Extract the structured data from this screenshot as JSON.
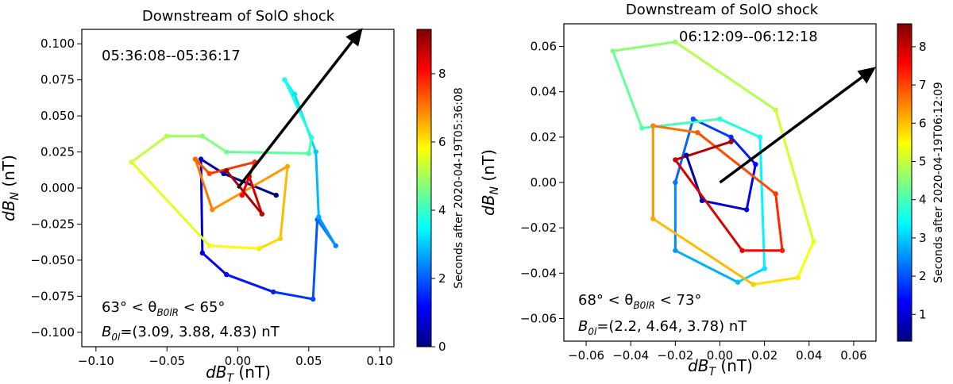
{
  "chart_data": [
    {
      "type": "line",
      "title": "Downstream of SolO shock",
      "xlabel_base": "dB",
      "xlabel_sub": "T",
      "xlabel_unit": " (nT)",
      "ylabel_base": "dB",
      "ylabel_sub": "N",
      "ylabel_unit": " (nT)",
      "xlim": [
        -0.11,
        0.11
      ],
      "ylim": [
        -0.11,
        0.11
      ],
      "xticks": [
        -0.1,
        -0.05,
        0.0,
        0.05,
        0.1
      ],
      "xtick_labels": [
        "−0.10",
        "−0.05",
        "0.00",
        "0.05",
        "0.10"
      ],
      "yticks": [
        -0.1,
        -0.075,
        -0.05,
        -0.025,
        0.0,
        0.025,
        0.05,
        0.075,
        0.1
      ],
      "ytick_labels": [
        "−0.100",
        "−0.075",
        "−0.050",
        "−0.025",
        "0.000",
        "0.025",
        "0.050",
        "0.075",
        "0.100"
      ],
      "time_range_label": "05:36:08--05:36:17",
      "angle_label": "63° < θ",
      "angle_sub": "B0lR",
      "angle_label_end": " < 65°",
      "b0_label_base": "B",
      "b0_label_sub": "0l",
      "b0_label_rest": "=(3.09, 3.88, 4.83) nT",
      "arrow": {
        "from": [
          0.0,
          0.0
        ],
        "to": [
          0.088,
          0.111
        ]
      },
      "colorbar": {
        "label": "Seconds after 2020-04-19T05:36:08",
        "vmin": 0,
        "vmax": 9.3,
        "ticks": [
          0,
          2,
          4,
          6,
          8
        ],
        "tick_labels": [
          "0",
          "2",
          "4",
          "6",
          "8"
        ]
      },
      "hodogram": {
        "t": [
          0.0,
          0.3,
          0.6,
          0.9,
          1.2,
          1.5,
          1.8,
          2.1,
          2.4,
          2.7,
          3.0,
          3.3,
          3.6,
          3.9,
          4.2,
          4.5,
          4.8,
          5.1,
          5.4,
          5.7,
          6.0,
          6.3,
          6.6,
          6.9,
          7.2,
          7.5,
          7.8,
          8.1,
          8.4,
          8.7,
          9.0
        ],
        "x": [
          0.027,
          -0.01,
          -0.026,
          -0.025,
          -0.008,
          0.025,
          0.053,
          0.056,
          0.069,
          0.057,
          0.055,
          0.04,
          0.033,
          0.052,
          0.05,
          -0.008,
          -0.025,
          -0.05,
          -0.075,
          -0.02,
          0.015,
          0.03,
          0.035,
          -0.018,
          -0.03,
          -0.02,
          0.012,
          0.003,
          0.008,
          0.017,
          -0.008
        ],
        "y": [
          -0.005,
          0.01,
          0.02,
          -0.045,
          -0.06,
          -0.072,
          -0.077,
          -0.022,
          -0.04,
          -0.02,
          0.025,
          0.065,
          0.075,
          0.035,
          0.024,
          0.025,
          0.036,
          0.036,
          0.018,
          -0.04,
          -0.042,
          -0.035,
          0.015,
          -0.015,
          0.02,
          0.01,
          0.018,
          -0.005,
          0.008,
          -0.018,
          0.012
        ]
      }
    },
    {
      "type": "line",
      "title": "Downstream of SolO shock",
      "xlabel_base": "dB",
      "xlabel_sub": "T",
      "xlabel_unit": " (nT)",
      "ylabel_base": "dB",
      "ylabel_sub": "N",
      "ylabel_unit": " (nT)",
      "xlim": [
        -0.07,
        0.07
      ],
      "ylim": [
        -0.07,
        0.07
      ],
      "xticks": [
        -0.06,
        -0.04,
        -0.02,
        0.0,
        0.02,
        0.04,
        0.06
      ],
      "xtick_labels": [
        "−0.06",
        "−0.04",
        "−0.02",
        "0.00",
        "0.02",
        "0.04",
        "0.06"
      ],
      "yticks": [
        -0.06,
        -0.04,
        -0.02,
        0.0,
        0.02,
        0.04,
        0.06
      ],
      "ytick_labels": [
        "−0.06",
        "−0.04",
        "−0.02",
        "0.00",
        "0.02",
        "0.04",
        "0.06"
      ],
      "time_range_label": "06:12:09--06:12:18",
      "angle_label": "68° < θ",
      "angle_sub": "B0lR",
      "angle_label_end": " < 73°",
      "b0_label_base": "B",
      "b0_label_sub": "0l",
      "b0_label_rest": "=(2.2, 4.64, 3.78) nT",
      "arrow": {
        "from": [
          0.0,
          0.0
        ],
        "to": [
          0.07,
          0.051
        ]
      },
      "colorbar": {
        "label": "Seconds after 2020-04-19T06:12:09",
        "vmin": 0.3,
        "vmax": 8.6,
        "ticks": [
          1,
          2,
          3,
          4,
          5,
          6,
          7,
          8
        ],
        "tick_labels": [
          "1",
          "2",
          "3",
          "4",
          "5",
          "6",
          "7",
          "8"
        ]
      },
      "hodogram": {
        "t": [
          0.5,
          0.8,
          1.1,
          1.4,
          1.7,
          2.0,
          2.3,
          2.6,
          2.9,
          3.2,
          3.5,
          3.8,
          4.1,
          4.4,
          4.7,
          5.0,
          5.3,
          5.6,
          5.9,
          6.2,
          6.5,
          6.8,
          7.1,
          7.4,
          7.7,
          8.0,
          8.3
        ],
        "x": [
          -0.015,
          -0.008,
          0.012,
          0.016,
          0.005,
          -0.012,
          -0.02,
          -0.02,
          0.008,
          0.02,
          0.018,
          0.0,
          -0.035,
          -0.048,
          -0.02,
          0.025,
          0.042,
          0.035,
          0.015,
          -0.03,
          -0.03,
          -0.01,
          0.025,
          0.028,
          0.01,
          -0.02,
          0.005
        ],
        "y": [
          0.012,
          -0.008,
          -0.012,
          0.008,
          0.02,
          0.028,
          0.0,
          -0.03,
          -0.044,
          -0.038,
          0.02,
          0.028,
          0.024,
          0.058,
          0.062,
          0.032,
          -0.026,
          -0.042,
          -0.045,
          -0.016,
          0.025,
          0.022,
          -0.005,
          -0.03,
          -0.03,
          0.01,
          0.018
        ]
      }
    }
  ]
}
